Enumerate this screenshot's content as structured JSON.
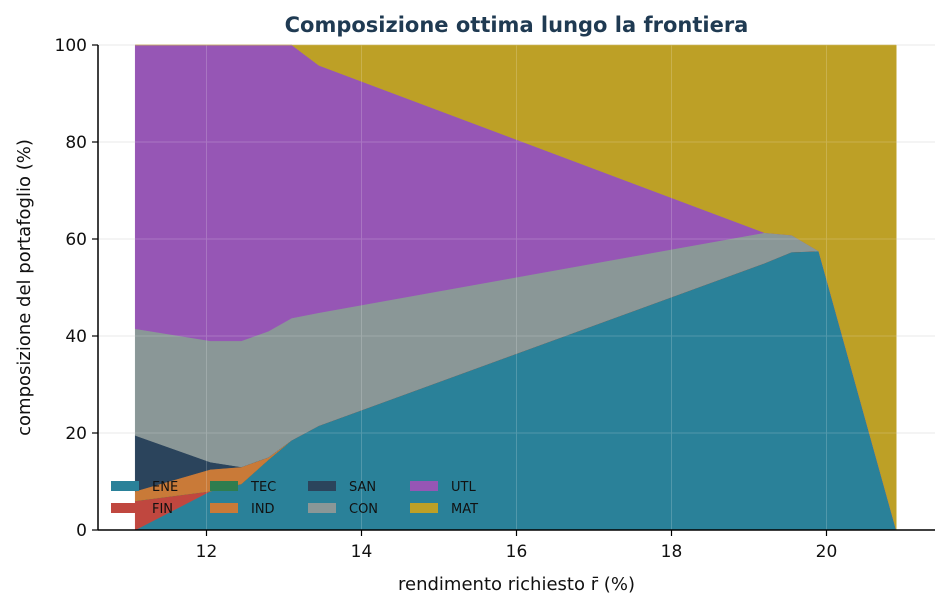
{
  "chart_data": {
    "type": "area",
    "title": "Composizione ottima lungo la frontiera",
    "xlabel": "rendimento richiesto r̄ (%)",
    "ylabel": "composizione del portafoglio (%)",
    "xlim": [
      10.6,
      21.4
    ],
    "ylim": [
      0,
      100
    ],
    "xticks": [
      12,
      14,
      16,
      18,
      20
    ],
    "yticks": [
      0,
      20,
      40,
      60,
      80,
      100
    ],
    "grid": true,
    "legend_position": "bottom-left",
    "title_color": "#1f3a52",
    "x": [
      11.08,
      12.05,
      12.45,
      12.8,
      13.1,
      13.45,
      19.2,
      19.55,
      19.9,
      20.9
    ],
    "series": [
      {
        "name": "ENE",
        "color": "#2a8199",
        "values": [
          0,
          8.0,
          9.5,
          14.5,
          18.5,
          21.5,
          55.0,
          57.3,
          57.5,
          0
        ]
      },
      {
        "name": "FIN",
        "color": "#c0473f",
        "values": [
          6.0,
          0,
          0,
          0,
          0,
          0,
          0,
          0,
          0,
          0
        ]
      },
      {
        "name": "TEC",
        "color": "#2e7d4f",
        "values": [
          0,
          0,
          0,
          0,
          0,
          0,
          0,
          0,
          0,
          0
        ]
      },
      {
        "name": "IND",
        "color": "#c97a38",
        "values": [
          2.0,
          4.5,
          3.5,
          0.5,
          0,
          0,
          0,
          0,
          0,
          0
        ]
      },
      {
        "name": "SAN",
        "color": "#2b445c",
        "values": [
          11.5,
          1.5,
          0,
          0,
          0,
          0,
          0,
          0,
          0,
          0
        ]
      },
      {
        "name": "CON",
        "color": "#8a9797",
        "values": [
          22.0,
          25.0,
          26.0,
          26.0,
          25.2,
          23.3,
          6.3,
          3.5,
          0,
          0
        ]
      },
      {
        "name": "UTL",
        "color": "#9656b5",
        "values": [
          58.5,
          61.0,
          61.0,
          59.0,
          56.3,
          51.0,
          0,
          0,
          0,
          0
        ]
      },
      {
        "name": "MAT",
        "color": "#bda026",
        "values": [
          0,
          0,
          0,
          0,
          0,
          4.2,
          38.7,
          39.2,
          42.5,
          100
        ]
      }
    ]
  }
}
